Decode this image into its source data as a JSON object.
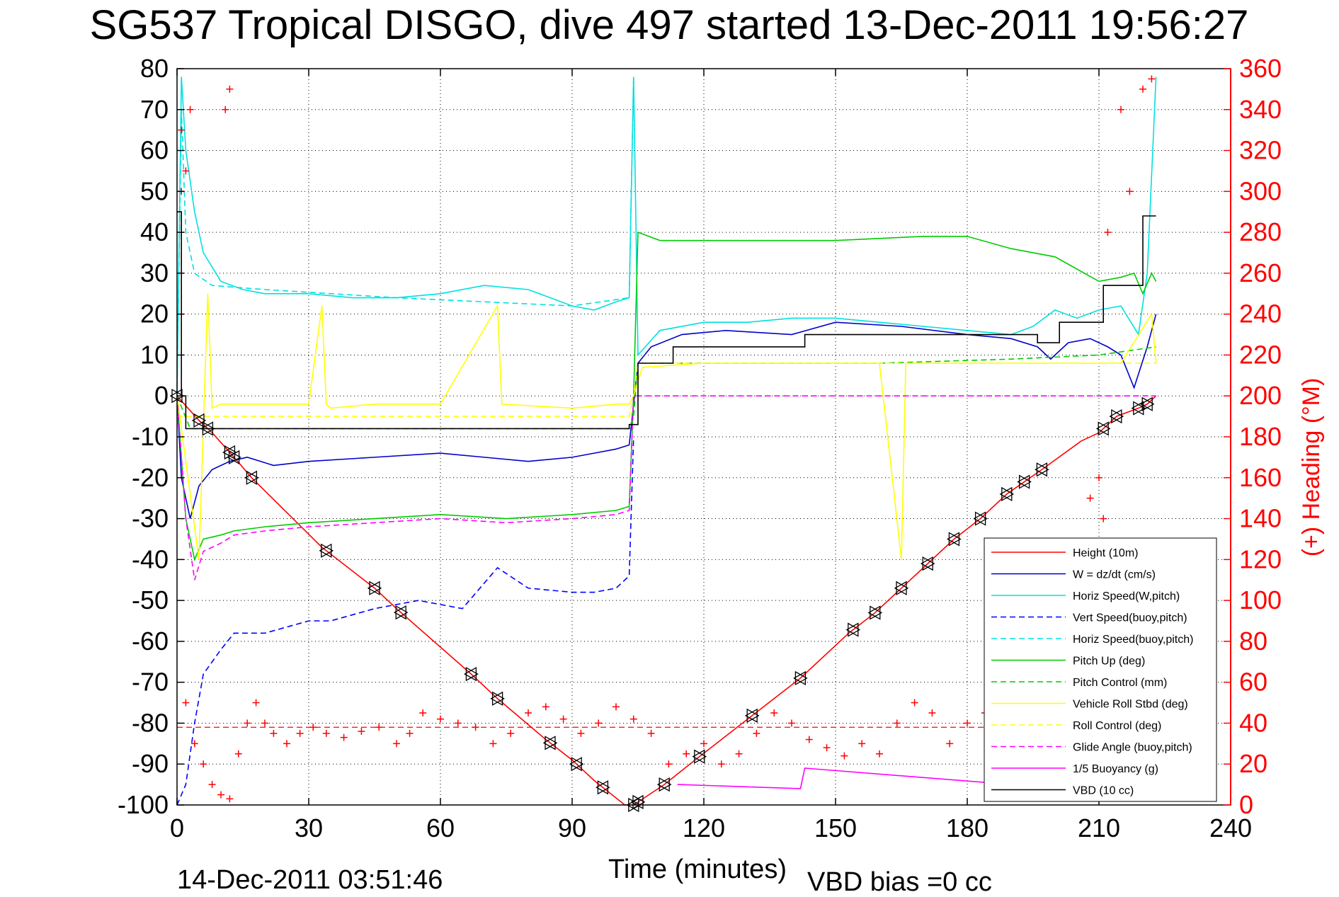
{
  "chart_data": {
    "type": "line",
    "title": "SG537 Tropical DISGO, dive 497 started 13-Dec-2011 19:56:27",
    "xlabel": "Time (minutes)",
    "ylabel_right": "(+) Heading (°M)",
    "footer_left": "14-Dec-2011 03:51:46",
    "footer_right": "VBD bias =0 cc",
    "xlim": [
      0,
      240
    ],
    "ylim": [
      -100,
      80
    ],
    "ylim_right": [
      0,
      360
    ],
    "x_ticks": [
      0,
      30,
      60,
      90,
      120,
      150,
      180,
      210,
      240
    ],
    "y_ticks": [
      -100,
      -90,
      -80,
      -70,
      -60,
      -50,
      -40,
      -30,
      -20,
      -10,
      0,
      10,
      20,
      30,
      40,
      50,
      60,
      70,
      80
    ],
    "y_ticks_right": [
      0,
      20,
      40,
      60,
      80,
      100,
      120,
      140,
      160,
      180,
      200,
      220,
      240,
      260,
      280,
      300,
      320,
      340,
      360
    ],
    "grid": true,
    "legend_position": "lower-right",
    "series": [
      {
        "name": "Height (10m)",
        "color": "#ff0000",
        "dash": "solid",
        "x": [
          0,
          5,
          8,
          13,
          17,
          33,
          45,
          50,
          67,
          73,
          84,
          90,
          95,
          102,
          104,
          111,
          118,
          130,
          142,
          153,
          159,
          165,
          171,
          177,
          183,
          189,
          193,
          197,
          206,
          210,
          214,
          219,
          221,
          223
        ],
        "y": [
          0,
          -6,
          -9,
          -15,
          -20,
          -37,
          -47,
          -52,
          -68,
          -74,
          -84,
          -89,
          -94,
          -100,
          -100,
          -95,
          -89,
          -79,
          -69,
          -58,
          -53,
          -47,
          -41,
          -35,
          -30,
          -24,
          -21,
          -18,
          -11,
          -9,
          -5,
          -3,
          -2,
          0
        ]
      },
      {
        "name": "W = dz/dt (cm/s)",
        "color": "#0000cc",
        "dash": "solid",
        "x": [
          0,
          1,
          3,
          5,
          8,
          12,
          16,
          22,
          30,
          45,
          60,
          70,
          80,
          90,
          95,
          100,
          103,
          105,
          108,
          115,
          125,
          140,
          150,
          165,
          180,
          190,
          196,
          199,
          203,
          208,
          212,
          215,
          218,
          221,
          223
        ],
        "y": [
          0,
          -20,
          -30,
          -22,
          -18,
          -16,
          -15,
          -17,
          -16,
          -15,
          -14,
          -15,
          -16,
          -15,
          -14,
          -13,
          -12,
          8,
          12,
          15,
          16,
          15,
          18,
          17,
          15,
          14,
          12,
          9,
          13,
          14,
          12,
          10,
          2,
          12,
          20
        ]
      },
      {
        "name": "Horiz Speed(W,pitch)",
        "color": "#00e0e0",
        "dash": "solid",
        "x": [
          0,
          1,
          2,
          4,
          6,
          10,
          15,
          20,
          30,
          40,
          50,
          60,
          70,
          80,
          85,
          90,
          95,
          100,
          103,
          104,
          105,
          110,
          120,
          130,
          140,
          150,
          160,
          170,
          180,
          190,
          195,
          200,
          205,
          210,
          215,
          219,
          221,
          223
        ],
        "y": [
          0,
          78,
          60,
          45,
          35,
          28,
          26,
          25,
          25,
          24,
          24,
          25,
          27,
          26,
          24,
          22,
          21,
          23,
          24,
          78,
          10,
          16,
          18,
          18,
          19,
          19,
          18,
          17,
          16,
          15,
          17,
          21,
          19,
          21,
          22,
          15,
          30,
          78
        ]
      },
      {
        "name": "Vert Speed(buoy,pitch)",
        "color": "#0000ff",
        "dash": "dashed",
        "x": [
          0,
          2,
          4,
          6,
          10,
          13,
          20,
          30,
          35,
          45,
          55,
          65,
          73,
          80,
          90,
          95,
          100,
          103,
          104
        ],
        "y": [
          -100,
          -95,
          -80,
          -68,
          -62,
          -58,
          -58,
          -55,
          -55,
          -52,
          -50,
          -52,
          -42,
          -47,
          -48,
          -48,
          -47,
          -44,
          -10
        ]
      },
      {
        "name": "Horiz Speed(buoy,pitch)",
        "color": "#00e0e0",
        "dash": "dashed",
        "x": [
          0,
          1,
          2,
          4,
          8,
          20,
          50,
          90,
          103,
          104
        ],
        "y": [
          0,
          70,
          40,
          30,
          27,
          26,
          24,
          22,
          24,
          78
        ]
      },
      {
        "name": "Pitch Up (deg)",
        "color": "#00cc00",
        "dash": "solid",
        "x": [
          0,
          2,
          4,
          6,
          10,
          13,
          20,
          30,
          45,
          60,
          75,
          90,
          100,
          103,
          104,
          105,
          110,
          120,
          140,
          150,
          170,
          180,
          190,
          200,
          210,
          215,
          218,
          220,
          222,
          223
        ],
        "y": [
          0,
          -30,
          -40,
          -35,
          -34,
          -33,
          -32,
          -31,
          -30,
          -29,
          -30,
          -29,
          -28,
          -27,
          0,
          40,
          38,
          38,
          38,
          38,
          39,
          39,
          36,
          34,
          28,
          29,
          30,
          25,
          30,
          28
        ]
      },
      {
        "name": "Pitch Control (mm)",
        "color": "#00cc00",
        "dash": "dashed",
        "x": [
          0,
          3,
          6,
          103,
          104,
          105,
          130,
          160,
          190,
          210,
          223
        ],
        "y": [
          0,
          -8,
          -8,
          -8,
          -5,
          8,
          8,
          8,
          9,
          10,
          12
        ]
      },
      {
        "name": "Vehicle Roll Stbd (deg)",
        "color": "#ffff00",
        "dash": "solid",
        "x": [
          0,
          5,
          7,
          8,
          10,
          30,
          33,
          34,
          35,
          45,
          60,
          73,
          74,
          90,
          100,
          103,
          104,
          106,
          120,
          140,
          160,
          165,
          166,
          167,
          180,
          200,
          210,
          215,
          222,
          223
        ],
        "y": [
          0,
          -40,
          25,
          -3,
          -2,
          -2,
          22,
          -2,
          -3,
          -2,
          -2,
          22,
          -2,
          -3,
          -2,
          -2,
          0,
          7,
          8,
          8,
          8,
          -40,
          8,
          8,
          8,
          8,
          8,
          8,
          20,
          8
        ]
      },
      {
        "name": "Roll Control (deg)",
        "color": "#ffff00",
        "dash": "dashed",
        "x": [
          0,
          103,
          104,
          105,
          223
        ],
        "y": [
          -5,
          -5,
          0,
          8,
          8
        ]
      },
      {
        "name": "Glide Angle (buoy,pitch)",
        "color": "#ff00ff",
        "dash": "dashed",
        "x": [
          0,
          2,
          4,
          6,
          10,
          13,
          20,
          30,
          45,
          60,
          75,
          90,
          100,
          103,
          104,
          223
        ],
        "y": [
          0,
          -30,
          -45,
          -38,
          -36,
          -34,
          -33,
          -32,
          -31,
          -30,
          -31,
          -30,
          -29,
          -28,
          0,
          0
        ]
      },
      {
        "name": "1/5 Buoyancy (g)",
        "color": "#ff00ff",
        "dash": "solid",
        "x": [
          114,
          142,
          143,
          190,
          200
        ],
        "y": [
          -95,
          -96,
          -91,
          -95,
          -97
        ]
      },
      {
        "name": "VBD (10 cc)",
        "color": "#000000",
        "dash": "solid",
        "step": true,
        "x": [
          0,
          1,
          2,
          103,
          105,
          112,
          113,
          142,
          143,
          195,
          196,
          200,
          201,
          210,
          211,
          219,
          220,
          223
        ],
        "y": [
          45,
          0,
          -8,
          -7,
          8,
          8,
          12,
          12,
          15,
          15,
          13,
          13,
          18,
          18,
          27,
          27,
          44,
          44
        ]
      }
    ],
    "heading": {
      "name": "(+) Heading (°M)",
      "color": "#ff0000",
      "axis": "right",
      "mean": 38,
      "points": [
        [
          1,
          300
        ],
        [
          1,
          330
        ],
        [
          2,
          310
        ],
        [
          3,
          340
        ],
        [
          11,
          340
        ],
        [
          12,
          350
        ],
        [
          2,
          50
        ],
        [
          4,
          30
        ],
        [
          6,
          20
        ],
        [
          8,
          10
        ],
        [
          10,
          5
        ],
        [
          12,
          3
        ],
        [
          14,
          25
        ],
        [
          16,
          40
        ],
        [
          18,
          50
        ],
        [
          20,
          40
        ],
        [
          22,
          35
        ],
        [
          25,
          30
        ],
        [
          28,
          35
        ],
        [
          31,
          38
        ],
        [
          34,
          35
        ],
        [
          38,
          33
        ],
        [
          42,
          36
        ],
        [
          46,
          38
        ],
        [
          50,
          30
        ],
        [
          53,
          35
        ],
        [
          56,
          45
        ],
        [
          60,
          42
        ],
        [
          64,
          40
        ],
        [
          68,
          38
        ],
        [
          72,
          30
        ],
        [
          76,
          35
        ],
        [
          80,
          45
        ],
        [
          84,
          48
        ],
        [
          88,
          42
        ],
        [
          92,
          35
        ],
        [
          96,
          40
        ],
        [
          100,
          48
        ],
        [
          104,
          42
        ],
        [
          108,
          35
        ],
        [
          112,
          20
        ],
        [
          116,
          25
        ],
        [
          120,
          30
        ],
        [
          124,
          20
        ],
        [
          128,
          25
        ],
        [
          132,
          35
        ],
        [
          136,
          45
        ],
        [
          140,
          40
        ],
        [
          144,
          32
        ],
        [
          148,
          28
        ],
        [
          152,
          24
        ],
        [
          156,
          30
        ],
        [
          160,
          25
        ],
        [
          164,
          40
        ],
        [
          168,
          50
        ],
        [
          172,
          45
        ],
        [
          176,
          30
        ],
        [
          180,
          40
        ],
        [
          184,
          45
        ],
        [
          188,
          35
        ],
        [
          192,
          38
        ],
        [
          196,
          45
        ],
        [
          200,
          40
        ],
        [
          204,
          35
        ],
        [
          208,
          150
        ],
        [
          210,
          160
        ],
        [
          211,
          140
        ],
        [
          212,
          280
        ],
        [
          215,
          340
        ],
        [
          217,
          300
        ],
        [
          220,
          350
        ],
        [
          222,
          355
        ]
      ]
    },
    "markers": {
      "type": "triangles",
      "color": "#000000",
      "x": [
        0,
        5,
        7,
        12,
        13,
        17,
        34,
        45,
        51,
        67,
        73,
        85,
        91,
        97,
        104,
        105,
        111,
        119,
        131,
        142,
        154,
        159,
        165,
        171,
        177,
        183,
        189,
        193,
        197,
        211,
        214,
        219,
        221
      ]
    }
  }
}
